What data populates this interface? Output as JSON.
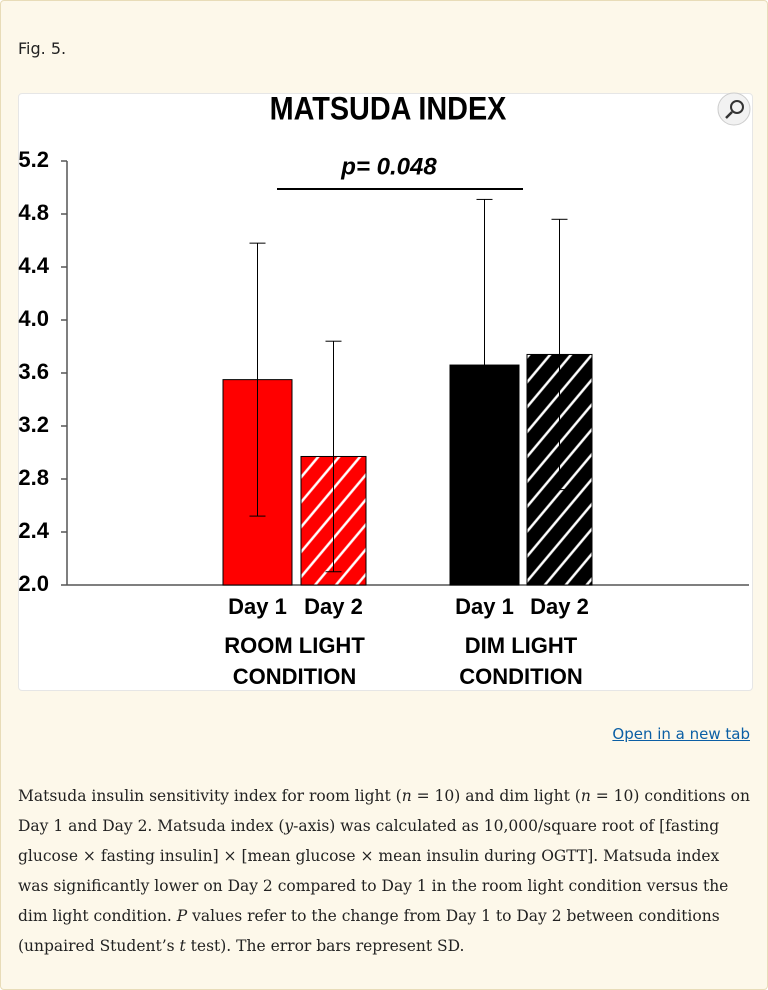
{
  "label": "Fig. 5.",
  "chart_data": {
    "type": "bar",
    "title": "MATSUDA INDEX",
    "categories": [
      "Day 1",
      "Day 2",
      "Day 1",
      "Day 2"
    ],
    "group_labels": [
      [
        "ROOM LIGHT",
        "CONDITION"
      ],
      [
        "DIM LIGHT",
        "CONDITION"
      ]
    ],
    "values": [
      3.55,
      2.97,
      3.66,
      3.74
    ],
    "errors": [
      1.03,
      0.87,
      1.25,
      1.02
    ],
    "colors": [
      "#ff0000",
      "#ff0000",
      "#000000",
      "#000000"
    ],
    "hatched": [
      false,
      true,
      false,
      true
    ],
    "ylim": [
      2.0,
      5.2
    ],
    "yticks": [
      {
        "value": 2.0,
        "label": "2.0"
      },
      {
        "value": 2.4,
        "label": "2.4"
      },
      {
        "value": 2.8,
        "label": "2.8"
      },
      {
        "value": 3.2,
        "label": "3.2"
      },
      {
        "value": 3.6,
        "label": "3.6"
      },
      {
        "value": 4.0,
        "label": "4.0"
      },
      {
        "value": 4.4,
        "label": "4.4"
      },
      {
        "value": 4.8,
        "label": "4.8"
      },
      {
        "value": 5.2,
        "label": "5.2"
      }
    ],
    "annotation": "p= 0.048"
  },
  "link": "Open in a new tab",
  "caption": [
    {
      "text": "Matsuda insulin sensitivity index for room light ("
    },
    {
      "text": "n",
      "italic": true
    },
    {
      "text": " = 10) and dim light ("
    },
    {
      "text": "n",
      "italic": true
    },
    {
      "text": " = 10) conditions on Day 1 and Day 2. Matsuda index ("
    },
    {
      "text": "y",
      "italic": true
    },
    {
      "text": "-axis) was calculated as 10,000/square root of [fasting glucose × fasting insulin] × [mean glucose × mean insulin during OGTT]. Matsuda index was significantly lower on Day 2 compared to Day 1 in the room light condition versus the dim light condition. "
    },
    {
      "text": "P",
      "italic": true
    },
    {
      "text": " values refer to the change from Day 1 to Day 2 between conditions (unpaired Student’s "
    },
    {
      "text": "t",
      "italic": true
    },
    {
      "text": " test). The error bars represent SD."
    }
  ]
}
